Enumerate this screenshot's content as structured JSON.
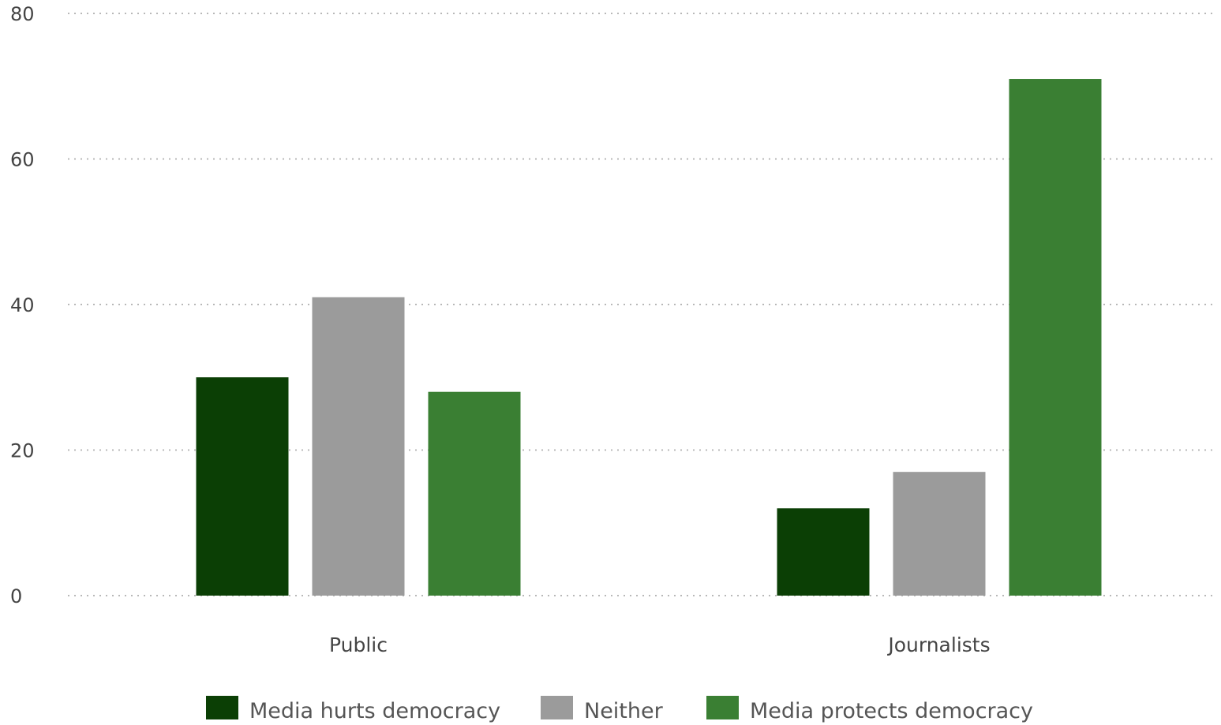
{
  "chart_data": {
    "type": "bar",
    "categories": [
      "Public",
      "Journalists"
    ],
    "series": [
      {
        "name": "Media hurts democracy",
        "color": "#0b3f05",
        "values": [
          30,
          12
        ]
      },
      {
        "name": "Neither",
        "color": "#9b9b9b",
        "values": [
          41,
          17
        ]
      },
      {
        "name": "Media protects democracy",
        "color": "#3a7f33",
        "values": [
          28,
          71
        ]
      }
    ],
    "ylim": [
      0,
      80
    ],
    "yticks": [
      0,
      20,
      40,
      60,
      80
    ],
    "grid": true,
    "legend": "bottom-center",
    "xlabel": "",
    "ylabel": ""
  }
}
